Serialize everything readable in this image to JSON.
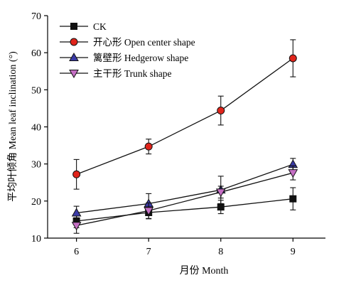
{
  "chart_data": {
    "type": "line",
    "xlabel": "月份 Month",
    "ylabel": "平均叶倾角 Mean leaf inclination (°)",
    "x": [
      6,
      7,
      8,
      9
    ],
    "xticks": [
      6,
      7,
      8,
      9
    ],
    "xlim": [
      5.6,
      9.45
    ],
    "ylim": [
      10,
      70
    ],
    "yticks": [
      10,
      20,
      30,
      40,
      50,
      60,
      70
    ],
    "grid": false,
    "legend_position": "top-left",
    "series": [
      {
        "name": "CK",
        "marker": "square",
        "fill": "#111111",
        "values": [
          14.6,
          16.9,
          18.4,
          20.6
        ],
        "errors": [
          1.8,
          1.7,
          1.8,
          3.0
        ]
      },
      {
        "name": "开心形 Open center shape",
        "marker": "circle",
        "fill": "#e0241b",
        "values": [
          27.2,
          34.7,
          44.4,
          58.5
        ],
        "errors": [
          4.0,
          2.0,
          3.9,
          5.0
        ]
      },
      {
        "name": "篱壁形 Hedgerow shape",
        "marker": "triangle-up",
        "fill": "#3a3aa6",
        "values": [
          16.8,
          19.3,
          23.0,
          29.9
        ],
        "errors": [
          1.8,
          2.7,
          3.7,
          1.6
        ]
      },
      {
        "name": "主干形 Trunk shape",
        "marker": "triangle-down",
        "fill": "#c56fc4",
        "values": [
          13.4,
          17.4,
          22.4,
          27.6
        ],
        "errors": [
          2.1,
          2.1,
          1.6,
          1.9
        ]
      }
    ]
  }
}
